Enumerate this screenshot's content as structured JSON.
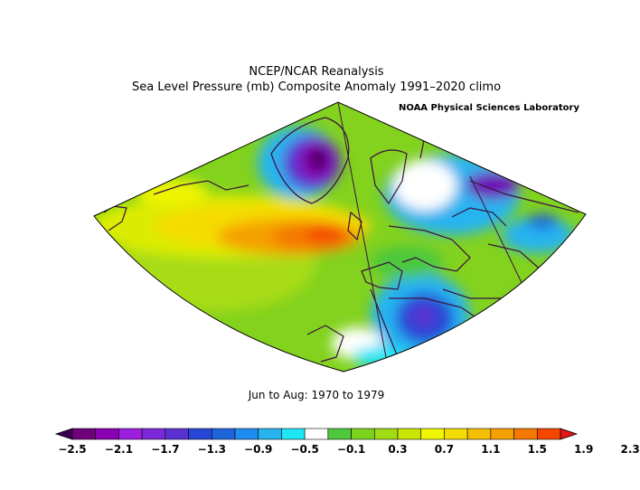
{
  "title_line1": "NCEP/NCAR Reanalysis",
  "title_line2": "Sea Level Pressure (mb) Composite Anomaly 1991–2020 climo",
  "credit": "NOAA Physical Sciences Laboratory",
  "period": "Jun to Aug: 1970 to 1979",
  "colorbar": {
    "labels": [
      "−2.5",
      "−2.1",
      "−1.7",
      "−1.3",
      "−0.9",
      "−0.5",
      "−0.1",
      "0.3",
      "0.7",
      "1.1",
      "1.5",
      "1.9",
      "2.3"
    ],
    "colors": [
      "#3c0050",
      "#6e007a",
      "#8c00b4",
      "#9e1ee0",
      "#7a28d8",
      "#5a32d2",
      "#2846d6",
      "#1e64dc",
      "#1e8cf0",
      "#28b4f0",
      "#1ee6f5",
      "#ffffff",
      "#4ec83c",
      "#7ad21e",
      "#a0dc14",
      "#c8e600",
      "#f0f500",
      "#f5dc00",
      "#f5be00",
      "#f5a000",
      "#f57800",
      "#f54600",
      "#e61414"
    ]
  }
}
